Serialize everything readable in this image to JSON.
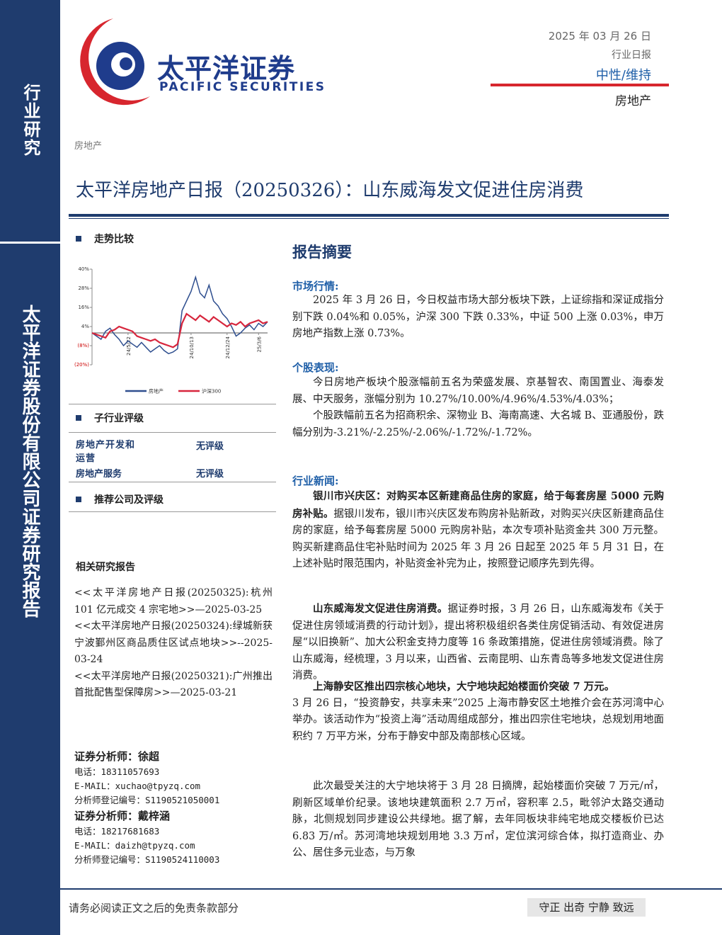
{
  "header": {
    "brand_cn": "太平洋证券",
    "brand_en": "PACIFIC SECURITIES",
    "date": "2025 年 03 月 26 日",
    "report_type": "行业日报",
    "rating": "中性/维持",
    "industry": "房地产"
  },
  "sidebar": {
    "top": "行业研究",
    "bottom": "太平洋证券股份有限公司证券研究报告"
  },
  "category": "房地产",
  "title": "太平洋房地产日报（20250326）：山东威海发文促进住房消费",
  "left": {
    "trend_heading": "走势比较",
    "sub_rating_heading": "子行业评级",
    "sub_rating_rows": [
      [
        "房地产开发和运营",
        "无评级"
      ],
      [
        "房地产服务",
        "无评级"
      ]
    ],
    "recommend_heading": "推荐公司及评级",
    "related_heading": "相关研究报告",
    "related_reports": [
      "<<太平洋房地产日报(20250325):杭州 101 亿元成交 4 宗宅地>>—2025-03-25",
      "<<太平洋房地产日报(20250324):绿城新获宁波鄞州区商品质住区试点地块>>--2025-03-24",
      "<<太平洋房地产日报(20250321):广州推出首批配售型保障房>>—2025-03-21"
    ],
    "analysts": [
      {
        "title": "证券分析师：徐超",
        "phone": "电话：18311057693",
        "email": "E-MAIL：xuchao@tpyzq.com",
        "reg": "分析师登记编号：S1190521050001"
      },
      {
        "title": "证券分析师：戴梓涵",
        "phone": "电话：18217681683",
        "email": "E-MAIL：daizh@tpyzq.com",
        "reg": "分析师登记编号：S1190524110003"
      }
    ]
  },
  "chart_data": {
    "type": "line",
    "x": [
      0,
      1,
      2,
      3,
      4,
      5,
      6,
      7,
      8,
      9,
      10,
      11,
      12,
      13,
      14,
      15,
      16,
      17,
      18,
      19,
      20,
      21,
      22,
      23,
      24,
      25,
      26,
      27,
      28,
      29,
      30,
      31,
      32,
      33,
      34,
      35,
      36,
      37,
      38,
      39
    ],
    "xlim": [
      0,
      39
    ],
    "xticks": [
      {
        "value": 8,
        "label": "24/5/22"
      },
      {
        "value": 22,
        "label": "24/10/13"
      },
      {
        "value": 30,
        "label": "24/12/24"
      },
      {
        "value": 37,
        "label": "25/3/6"
      }
    ],
    "ylim": [
      -20,
      40
    ],
    "yticks": [
      {
        "value": 40,
        "label": "40%"
      },
      {
        "value": 28,
        "label": "28%"
      },
      {
        "value": 16,
        "label": "16%"
      },
      {
        "value": 4,
        "label": "4%"
      },
      {
        "value": -8,
        "label": "(8%)"
      },
      {
        "value": -20,
        "label": "(20%)"
      }
    ],
    "series": [
      {
        "name": "房地产",
        "color": "#2f4f8f",
        "values": [
          0,
          -2,
          -4,
          1,
          3,
          -1,
          -4,
          -8,
          -5,
          -7,
          -9,
          -6,
          -9,
          -12,
          -10,
          -8,
          -11,
          -13,
          -12,
          -10,
          14,
          20,
          26,
          35,
          25,
          22,
          30,
          20,
          17,
          12,
          9,
          4,
          -2,
          0,
          3,
          5,
          2,
          6,
          4,
          7
        ]
      },
      {
        "name": "沪深300",
        "color": "#d7263d",
        "values": [
          0,
          -1,
          -2,
          -3,
          1,
          2,
          4,
          3,
          2,
          1,
          -2,
          -3,
          -4,
          -5,
          -4,
          -6,
          -7,
          -8,
          -9,
          -7,
          6,
          12,
          10,
          8,
          11,
          9,
          7,
          10,
          8,
          6,
          4,
          6,
          5,
          7,
          4,
          6,
          7,
          8,
          6,
          7
        ]
      }
    ]
  },
  "summary": {
    "heading": "报告摘要",
    "market_heading": "市场行情:",
    "market_text": "2025 年 3 月 26 日，今日权益市场大部分板块下跌，上证综指和深证成指分别下跌 0.04%和 0.05%，沪深 300 下跌 0.33%，中证 500 上涨 0.03%，申万房地产指数上涨 0.73%。",
    "stocks_heading": "个股表现:",
    "stocks_texts": [
      "今日房地产板块个股涨幅前五名为荣盛发展、京基智农、南国置业、海泰发展、中天服务，涨幅分别为 10.27%/10.00%/4.96%/4.53%/4.03%；",
      "个股跌幅前五名为招商积余、深物业 B、海南高速、大名城 B、亚通股份，跌幅分别为-3.21%/-2.25%/-2.06%/-1.72%/-1.72%。"
    ],
    "news_heading": "行业新闻:",
    "news": [
      {
        "lead": "银川市兴庆区：对购买本区新建商品住房的家庭，给于每套房屋 5000 元购房补贴。",
        "text": "据银川发布，银川市兴庆区发布购房补贴新政，对购买兴庆区新建商品住房的家庭，给予每套房屋 5000 元购房补贴，本次专项补贴资金共 300 万元整。购买新建商品住宅补贴时间为 2025 年 3 月 26 日起至 2025 年 5 月 31 日，在上述补贴时限范围内，补贴资金补完为止，按照登记顺序先到先得。"
      },
      {
        "lead": "山东威海发文促进住房消费。",
        "text": "据证券时报，3 月 26 日，山东威海发布《关于促进住房领域消费的行动计划》，提出将积极组织各类住房促销活动、有效促进房屋“以旧换新”、加大公积金支持力度等 16 条政策措施，促进住房领域消费。除了山东威海，经梳理，3 月以来，山西省、云南昆明、山东青岛等多地发文促进住房消费。"
      },
      {
        "lead": "上海静安区推出四宗核心地块，大宁地块起始楼面价突破 7 万元。",
        "text": "3 月 26 日，“投资静安，共享未来”2025 上海市静安区土地推介会在苏河湾中心举办。该活动作为“投资上海”活动周组成部分，推出四宗住宅地块，总规划用地面积约 7 万平方米，分布于静安中部及南部核心区域。"
      }
    ],
    "news_extra": "此次最受关注的大宁地块将于 3 月 28 日摘牌，起始楼面价突破 7 万元/㎡，刷新区域单价纪录。该地块建筑面积 2.7 万㎡，容积率 2.5，毗邻沪太路交通动脉，北侧规划同步建设公共绿地。据了解，去年同板块非纯宅地成交楼板价已达 6.83 万/㎡。苏河湾地块规划用地 3.3 万㎡，定位滨河综合体，拟打造商业、办公、居住多元业态，与万象"
  },
  "footer": {
    "disclaimer": "请务必阅读正文之后的免责条款部分",
    "motto": "守正 出奇 宁静 致远"
  }
}
